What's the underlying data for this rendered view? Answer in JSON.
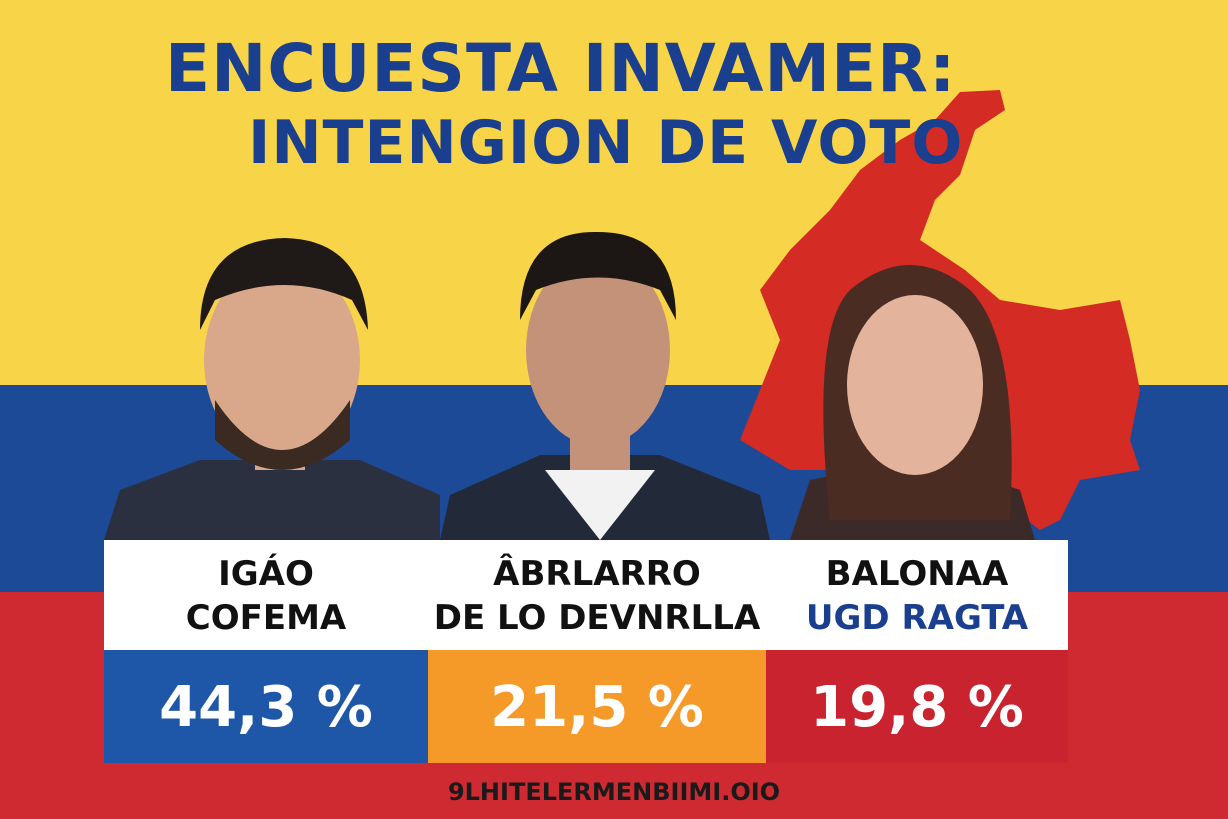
{
  "header": {
    "title_line1": "ENCUESTA INVAMER:",
    "title_line2": "INTENGION DE VOTO"
  },
  "candidates": [
    {
      "name_line1": "IGÁO",
      "name_line2": "COFEMA",
      "percent": "44,3 %"
    },
    {
      "name_line1": "ÂBRLARRO",
      "name_line2": "DE LO DEVNRLLA",
      "percent": "21,5 %"
    },
    {
      "name_line1": "BALONAA",
      "name_line2": "UGD RAGTA",
      "percent": "19,8 %"
    }
  ],
  "footer": "9LHITELERMENBIIMI.OIO"
}
